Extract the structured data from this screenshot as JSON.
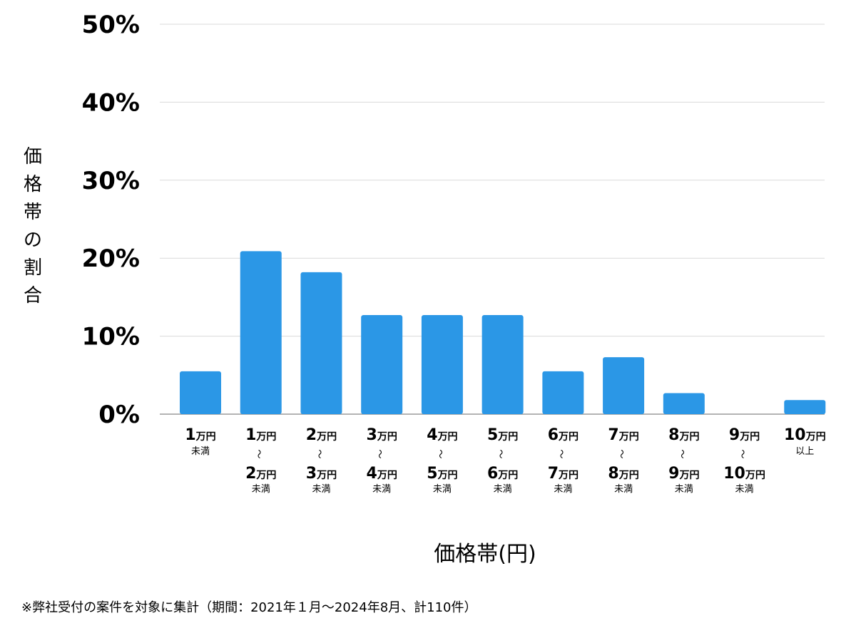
{
  "chart_data": {
    "type": "bar",
    "ylabel": "価格帯の割合",
    "xlabel": "価格帯(円)",
    "ylim": [
      0,
      50
    ],
    "yticks": [
      "0%",
      "10%",
      "20%",
      "30%",
      "40%",
      "50%"
    ],
    "ytick_values": [
      0,
      10,
      20,
      30,
      40,
      50
    ],
    "grid": true,
    "bar_color": "#2b97e6",
    "categories": [
      {
        "lines": [
          {
            "num": "1",
            "unit": "万円"
          }
        ],
        "suffix": "未満"
      },
      {
        "lines": [
          {
            "num": "1",
            "unit": "万円"
          },
          {
            "num": "2",
            "unit": "万円"
          }
        ],
        "tilde": "〜",
        "suffix": "未満"
      },
      {
        "lines": [
          {
            "num": "2",
            "unit": "万円"
          },
          {
            "num": "3",
            "unit": "万円"
          }
        ],
        "tilde": "〜",
        "suffix": "未満"
      },
      {
        "lines": [
          {
            "num": "3",
            "unit": "万円"
          },
          {
            "num": "4",
            "unit": "万円"
          }
        ],
        "tilde": "〜",
        "suffix": "未満"
      },
      {
        "lines": [
          {
            "num": "4",
            "unit": "万円"
          },
          {
            "num": "5",
            "unit": "万円"
          }
        ],
        "tilde": "〜",
        "suffix": "未満"
      },
      {
        "lines": [
          {
            "num": "5",
            "unit": "万円"
          },
          {
            "num": "6",
            "unit": "万円"
          }
        ],
        "tilde": "〜",
        "suffix": "未満"
      },
      {
        "lines": [
          {
            "num": "6",
            "unit": "万円"
          },
          {
            "num": "7",
            "unit": "万円"
          }
        ],
        "tilde": "〜",
        "suffix": "未満"
      },
      {
        "lines": [
          {
            "num": "7",
            "unit": "万円"
          },
          {
            "num": "8",
            "unit": "万円"
          }
        ],
        "tilde": "〜",
        "suffix": "未満"
      },
      {
        "lines": [
          {
            "num": "8",
            "unit": "万円"
          },
          {
            "num": "9",
            "unit": "万円"
          }
        ],
        "tilde": "〜",
        "suffix": "未満"
      },
      {
        "lines": [
          {
            "num": "9",
            "unit": "万円"
          },
          {
            "num": "10",
            "unit": "万円"
          }
        ],
        "tilde": "〜",
        "suffix": "未満"
      },
      {
        "lines": [
          {
            "num": "10",
            "unit": "万円"
          }
        ],
        "suffix": "以上"
      }
    ],
    "values": [
      5.5,
      20.9,
      18.2,
      12.7,
      12.7,
      12.7,
      5.5,
      7.3,
      2.7,
      0,
      1.8
    ]
  },
  "footnote": "※弊社受付の案件を対象に集計（期間：2021年１月〜2024年8月、計110件）"
}
